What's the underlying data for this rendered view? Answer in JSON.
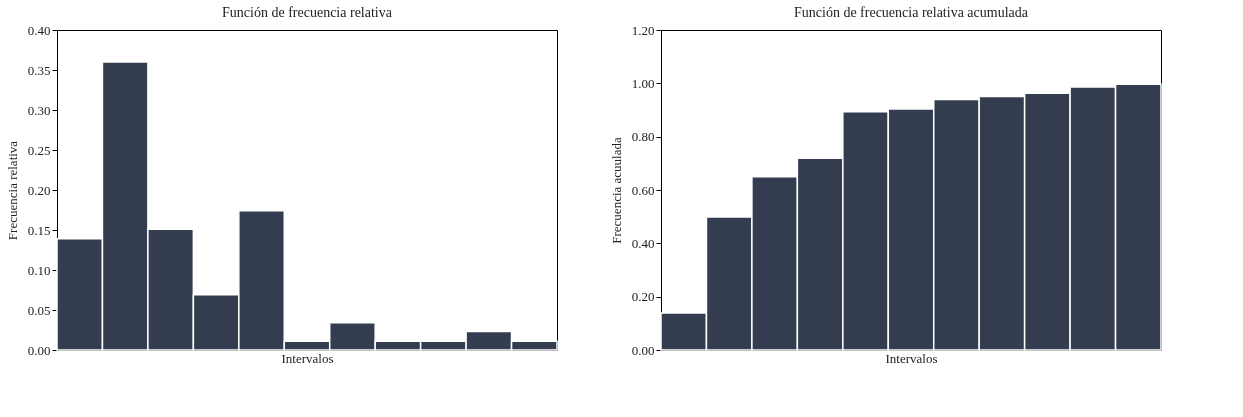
{
  "chart_data": [
    {
      "type": "bar",
      "title": "Función de frecuencia relativa",
      "xlabel": "Intervalos",
      "ylabel": "Frecuencia relativa",
      "categories": [
        null,
        null,
        null,
        null,
        null,
        null,
        null,
        null,
        null,
        null,
        null
      ],
      "series": [
        {
          "color": "#333d4f",
          "values": [
            0.139,
            0.36,
            0.151,
            0.069,
            0.174,
            0.011,
            0.034,
            0.011,
            0.011,
            0.023,
            0.011
          ]
        }
      ],
      "ylim": [
        0,
        0.4
      ],
      "yticks": [
        {
          "value": 0,
          "label": "0.00"
        },
        {
          "value": 0.05,
          "label": "0.05"
        },
        {
          "value": 0.1,
          "label": "0.10"
        },
        {
          "value": 0.15,
          "label": "0.15"
        },
        {
          "value": 0.2,
          "label": "0.20"
        },
        {
          "value": 0.25,
          "label": "0.25"
        },
        {
          "value": 0.3,
          "label": "0.30"
        },
        {
          "value": 0.35,
          "label": "0.35"
        },
        {
          "value": 0.4,
          "label": "0.40"
        }
      ],
      "tick_labels": "y",
      "grid": false
    },
    {
      "type": "bar",
      "title": "Función de frecuencia relativa acumulada",
      "xlabel": "Intervalos",
      "ylabel": "Frecuencia acuulada",
      "categories": [
        null,
        null,
        null,
        null,
        null,
        null,
        null,
        null,
        null,
        null,
        null
      ],
      "series": [
        {
          "color": "#333d4f",
          "values": [
            0.139,
            0.499,
            0.65,
            0.719,
            0.893,
            0.904,
            0.939,
            0.951,
            0.963,
            0.986,
            0.997
          ]
        }
      ],
      "ylim": [
        0,
        1.2
      ],
      "yticks": [
        {
          "value": 0,
          "label": "0.00"
        },
        {
          "value": 0.2,
          "label": "0.20"
        },
        {
          "value": 0.4,
          "label": "0.40"
        },
        {
          "value": 0.6,
          "label": "0.60"
        },
        {
          "value": 0.8,
          "label": "0.80"
        },
        {
          "value": 1.0,
          "label": "1.00"
        },
        {
          "value": 1.2,
          "label": "1.20"
        }
      ],
      "tick_labels": "y",
      "grid": false
    }
  ]
}
